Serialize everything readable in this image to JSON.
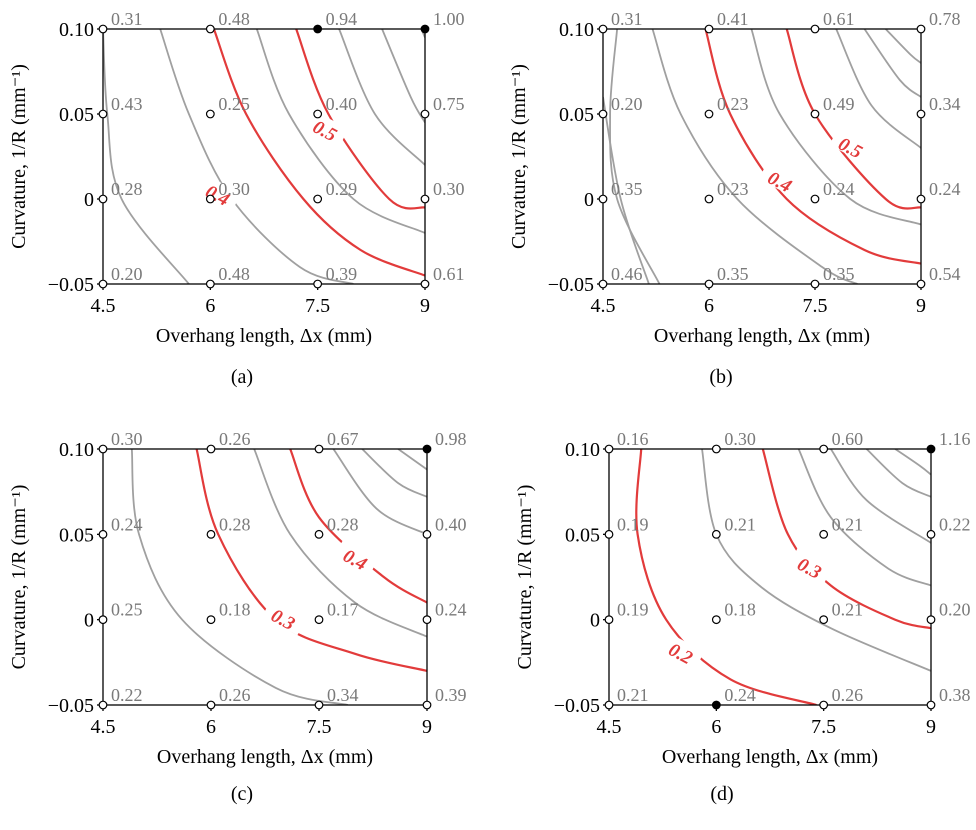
{
  "colors": {
    "major_contour": "#e23b3b",
    "minor_contour": "#a0a0a0",
    "axis": "#000000",
    "point_label": "#7a7a7a"
  },
  "chart_data": [
    {
      "type": "contour",
      "panel_label": "(a)",
      "xlabel": "Overhang length, Δx (mm)",
      "ylabel": "Curvature, 1/R (mm⁻¹)",
      "x_ticks": [
        "4.5",
        "6",
        "7.5",
        "9"
      ],
      "y_ticks": [
        "0.10",
        "0.05",
        "0",
        "−0.05"
      ],
      "xlim": [
        4.5,
        9
      ],
      "ylim": [
        -0.05,
        0.1
      ],
      "grid_x": [
        4.5,
        6,
        7.5,
        9
      ],
      "grid_y": [
        0.1,
        0.05,
        0,
        -0.05
      ],
      "values": [
        [
          0.31,
          0.48,
          0.94,
          1.0
        ],
        [
          0.43,
          0.25,
          0.4,
          0.75
        ],
        [
          0.28,
          0.3,
          0.29,
          0.3
        ],
        [
          0.2,
          0.48,
          0.39,
          0.61
        ]
      ],
      "value_labels": [
        [
          "0.31",
          "0.48",
          "0.94",
          "1.00"
        ],
        [
          "0.43",
          "0.25",
          "0.40",
          "0.75"
        ],
        [
          "0.28",
          "0.30",
          "0.29",
          "0.30"
        ],
        [
          "0.20",
          "0.48",
          "0.39",
          "0.61"
        ]
      ],
      "filled_points": [
        [
          0,
          2
        ],
        [
          0,
          3
        ]
      ],
      "contours": [
        {
          "level": 0.2,
          "major": false,
          "points": [
            [
              4.5,
              0.1
            ],
            [
              4.56,
              0.05
            ],
            [
              4.76,
              0.0
            ],
            [
              5.7,
              -0.05
            ]
          ]
        },
        {
          "level": 0.3,
          "major": false,
          "points": [
            [
              5.3,
              0.1
            ],
            [
              5.7,
              0.05
            ],
            [
              6.3,
              0.0
            ],
            [
              7.25,
              -0.04
            ],
            [
              8.0,
              -0.05
            ]
          ]
        },
        {
          "level": 0.4,
          "label": "0.4",
          "label_at": [
            6.1,
            0.002
          ],
          "major": true,
          "points": [
            [
              6.05,
              0.1
            ],
            [
              6.5,
              0.05
            ],
            [
              7.3,
              0.0
            ],
            [
              8.1,
              -0.03
            ],
            [
              9.0,
              -0.045
            ]
          ]
        },
        {
          "level": 0.45,
          "major": false,
          "points": [
            [
              6.65,
              0.1
            ],
            [
              7.1,
              0.05
            ],
            [
              8.0,
              0.0
            ],
            [
              9.0,
              -0.02
            ]
          ]
        },
        {
          "level": 0.5,
          "label": "0.5",
          "label_at": [
            7.6,
            0.04
          ],
          "major": true,
          "points": [
            [
              7.2,
              0.1
            ],
            [
              7.65,
              0.05
            ],
            [
              8.5,
              0.0
            ],
            [
              9.0,
              -0.005
            ]
          ]
        },
        {
          "level": 0.6,
          "major": false,
          "points": [
            [
              7.8,
              0.1
            ],
            [
              8.3,
              0.05
            ],
            [
              9.0,
              0.02
            ]
          ]
        },
        {
          "level": 0.7,
          "major": false,
          "points": [
            [
              8.4,
              0.1
            ],
            [
              8.8,
              0.06
            ],
            [
              9.0,
              0.045
            ]
          ]
        },
        {
          "level": 0.8,
          "major": false,
          "points": [
            [
              8.95,
              0.1
            ],
            [
              9.0,
              0.095
            ]
          ]
        }
      ]
    },
    {
      "type": "contour",
      "panel_label": "(b)",
      "xlabel": "Overhang length, Δx (mm)",
      "ylabel": "Curvature, 1/R (mm⁻¹)",
      "x_ticks": [
        "4.5",
        "6",
        "7.5",
        "9"
      ],
      "y_ticks": [
        "0.10",
        "0.05",
        "0",
        "−0.05"
      ],
      "xlim": [
        4.5,
        9
      ],
      "ylim": [
        -0.05,
        0.1
      ],
      "grid_x": [
        4.5,
        6,
        7.5,
        9
      ],
      "grid_y": [
        0.1,
        0.05,
        0,
        -0.05
      ],
      "values": [
        [
          0.31,
          0.41,
          0.61,
          0.78
        ],
        [
          0.2,
          0.23,
          0.49,
          0.34
        ],
        [
          0.35,
          0.23,
          0.24,
          0.24
        ],
        [
          0.46,
          0.35,
          0.35,
          0.54
        ]
      ],
      "value_labels": [
        [
          "0.31",
          "0.41",
          "0.61",
          "0.78"
        ],
        [
          "0.20",
          "0.23",
          "0.49",
          "0.34"
        ],
        [
          "0.35",
          "0.23",
          "0.24",
          "0.24"
        ],
        [
          "0.46",
          "0.35",
          "0.35",
          "0.54"
        ]
      ],
      "filled_points": [],
      "contours": [
        {
          "level": 0.25,
          "major": false,
          "points": [
            [
              4.5,
              0.06
            ],
            [
              4.75,
              0.0
            ],
            [
              5.15,
              -0.05
            ]
          ]
        },
        {
          "level": 0.3,
          "major": false,
          "points": [
            [
              4.7,
              0.1
            ],
            [
              4.6,
              0.05
            ],
            [
              4.7,
              0.0
            ],
            [
              5.3,
              -0.05
            ]
          ]
        },
        {
          "level": 0.35,
          "major": false,
          "points": [
            [
              5.2,
              0.1
            ],
            [
              5.6,
              0.05
            ],
            [
              6.4,
              0.0
            ],
            [
              7.6,
              -0.04
            ],
            [
              8.1,
              -0.05
            ]
          ]
        },
        {
          "level": 0.4,
          "label": "0.4",
          "label_at": [
            7.0,
            0.01
          ],
          "major": true,
          "points": [
            [
              5.95,
              0.1
            ],
            [
              6.3,
              0.05
            ],
            [
              7.1,
              0.0
            ],
            [
              8.2,
              -0.03
            ],
            [
              9.0,
              -0.038
            ]
          ]
        },
        {
          "level": 0.45,
          "major": false,
          "points": [
            [
              6.6,
              0.1
            ],
            [
              7.0,
              0.05
            ],
            [
              8.0,
              0.0
            ],
            [
              9.0,
              -0.015
            ]
          ]
        },
        {
          "level": 0.5,
          "label": "0.5",
          "label_at": [
            8.0,
            0.03
          ],
          "major": true,
          "points": [
            [
              7.1,
              0.1
            ],
            [
              7.5,
              0.05
            ],
            [
              8.5,
              0.0
            ],
            [
              9.0,
              -0.005
            ]
          ]
        },
        {
          "level": 0.6,
          "major": false,
          "points": [
            [
              7.8,
              0.1
            ],
            [
              8.3,
              0.055
            ],
            [
              9.0,
              0.03
            ]
          ]
        },
        {
          "level": 0.7,
          "major": false,
          "points": [
            [
              8.2,
              0.1
            ],
            [
              8.7,
              0.07
            ],
            [
              9.0,
              0.06
            ]
          ]
        },
        {
          "level": 0.75,
          "major": false,
          "points": [
            [
              8.5,
              0.1
            ],
            [
              8.85,
              0.085
            ],
            [
              9.0,
              0.08
            ]
          ]
        }
      ]
    },
    {
      "type": "contour",
      "panel_label": "(c)",
      "xlabel": "Overhang length, Δx (mm)",
      "ylabel": "Curvature, 1/R (mm⁻¹)",
      "x_ticks": [
        "4.5",
        "6",
        "7.5",
        "9"
      ],
      "y_ticks": [
        "0.10",
        "0.05",
        "0",
        "−0.05"
      ],
      "xlim": [
        4.5,
        9
      ],
      "ylim": [
        -0.05,
        0.1
      ],
      "grid_x": [
        4.5,
        6,
        7.5,
        9
      ],
      "grid_y": [
        0.1,
        0.05,
        0,
        -0.05
      ],
      "values": [
        [
          0.3,
          0.26,
          0.67,
          0.98
        ],
        [
          0.24,
          0.28,
          0.28,
          0.4
        ],
        [
          0.25,
          0.18,
          0.17,
          0.24
        ],
        [
          0.22,
          0.26,
          0.34,
          0.39
        ]
      ],
      "value_labels": [
        [
          "0.30",
          "0.26",
          "0.67",
          "0.98"
        ],
        [
          "0.24",
          "0.28",
          "0.28",
          "0.40"
        ],
        [
          "0.25",
          "0.18",
          "0.17",
          "0.24"
        ],
        [
          "0.22",
          "0.26",
          "0.34",
          "0.39"
        ]
      ],
      "filled_points": [
        [
          0,
          3
        ]
      ],
      "contours": [
        {
          "level": 0.25,
          "major": false,
          "points": [
            [
              4.9,
              0.1
            ],
            [
              5.0,
              0.05
            ],
            [
              5.6,
              0.0
            ],
            [
              6.9,
              -0.04
            ],
            [
              7.9,
              -0.05
            ]
          ]
        },
        {
          "level": 0.3,
          "label": "0.3",
          "label_at": [
            7.0,
            0.0
          ],
          "major": true,
          "points": [
            [
              5.8,
              0.1
            ],
            [
              6.1,
              0.05
            ],
            [
              6.9,
              0.0
            ],
            [
              8.0,
              -0.02
            ],
            [
              9.0,
              -0.03
            ]
          ]
        },
        {
          "level": 0.35,
          "major": false,
          "points": [
            [
              6.6,
              0.1
            ],
            [
              7.1,
              0.05
            ],
            [
              8.0,
              0.01
            ],
            [
              9.0,
              -0.01
            ]
          ]
        },
        {
          "level": 0.4,
          "label": "0.4",
          "label_at": [
            8.0,
            0.035
          ],
          "major": true,
          "points": [
            [
              7.1,
              0.1
            ],
            [
              7.5,
              0.06
            ],
            [
              8.4,
              0.025
            ],
            [
              9.0,
              0.01
            ]
          ]
        },
        {
          "level": 0.5,
          "major": false,
          "points": [
            [
              7.7,
              0.1
            ],
            [
              8.3,
              0.065
            ],
            [
              9.0,
              0.05
            ]
          ]
        },
        {
          "level": 0.6,
          "major": false,
          "points": [
            [
              8.1,
              0.1
            ],
            [
              8.6,
              0.08
            ],
            [
              9.0,
              0.072
            ]
          ]
        },
        {
          "level": 0.7,
          "major": false,
          "points": [
            [
              8.6,
              0.1
            ],
            [
              9.0,
              0.088
            ]
          ]
        }
      ]
    },
    {
      "type": "contour",
      "panel_label": "(d)",
      "xlabel": "Overhang length, Δx (mm)",
      "ylabel": "Curvature, 1/R (mm⁻¹)",
      "x_ticks": [
        "4.5",
        "6",
        "7.5",
        "9"
      ],
      "y_ticks": [
        "0.10",
        "0.05",
        "0",
        "−0.05"
      ],
      "xlim": [
        4.5,
        9
      ],
      "ylim": [
        -0.05,
        0.1
      ],
      "grid_x": [
        4.5,
        6,
        7.5,
        9
      ],
      "grid_y": [
        0.1,
        0.05,
        0,
        -0.05
      ],
      "values": [
        [
          0.16,
          0.3,
          0.6,
          1.16
        ],
        [
          0.19,
          0.21,
          0.21,
          0.22
        ],
        [
          0.19,
          0.18,
          0.21,
          0.2
        ],
        [
          0.21,
          0.24,
          0.26,
          0.38
        ]
      ],
      "value_labels": [
        [
          "0.16",
          "0.30",
          "0.60",
          "1.16"
        ],
        [
          "0.19",
          "0.21",
          "0.21",
          "0.22"
        ],
        [
          "0.19",
          "0.18",
          "0.21",
          "0.20"
        ],
        [
          "0.21",
          "0.24",
          "0.26",
          "0.38"
        ]
      ],
      "filled_points": [
        [
          0,
          3
        ],
        [
          3,
          1
        ]
      ],
      "contours": [
        {
          "level": 0.2,
          "label": "0.2",
          "label_at": [
            5.5,
            -0.02
          ],
          "major": true,
          "points": [
            [
              4.95,
              0.1
            ],
            [
              4.9,
              0.05
            ],
            [
              5.3,
              0.0
            ],
            [
              6.2,
              -0.035
            ],
            [
              7.4,
              -0.05
            ]
          ]
        },
        {
          "level": 0.25,
          "major": false,
          "points": [
            [
              5.8,
              0.1
            ],
            [
              6.0,
              0.05
            ],
            [
              6.6,
              0.02
            ],
            [
              7.6,
              -0.005
            ],
            [
              9.0,
              -0.03
            ]
          ]
        },
        {
          "level": 0.3,
          "label": "0.3",
          "label_at": [
            7.3,
            0.03
          ],
          "major": true,
          "points": [
            [
              6.65,
              0.1
            ],
            [
              7.0,
              0.05
            ],
            [
              7.6,
              0.02
            ],
            [
              8.5,
              0.0
            ],
            [
              9.0,
              -0.005
            ]
          ]
        },
        {
          "level": 0.35,
          "major": false,
          "points": [
            [
              7.15,
              0.1
            ],
            [
              7.6,
              0.06
            ],
            [
              8.4,
              0.03
            ],
            [
              9.0,
              0.02
            ]
          ]
        },
        {
          "level": 0.4,
          "major": false,
          "points": [
            [
              7.6,
              0.1
            ],
            [
              8.1,
              0.07
            ],
            [
              9.0,
              0.045
            ]
          ]
        },
        {
          "level": 0.5,
          "major": false,
          "points": [
            [
              8.1,
              0.1
            ],
            [
              8.6,
              0.08
            ],
            [
              9.0,
              0.072
            ]
          ]
        },
        {
          "level": 0.6,
          "major": false,
          "points": [
            [
              8.5,
              0.1
            ],
            [
              8.85,
              0.09
            ],
            [
              9.0,
              0.085
            ]
          ]
        }
      ]
    }
  ]
}
